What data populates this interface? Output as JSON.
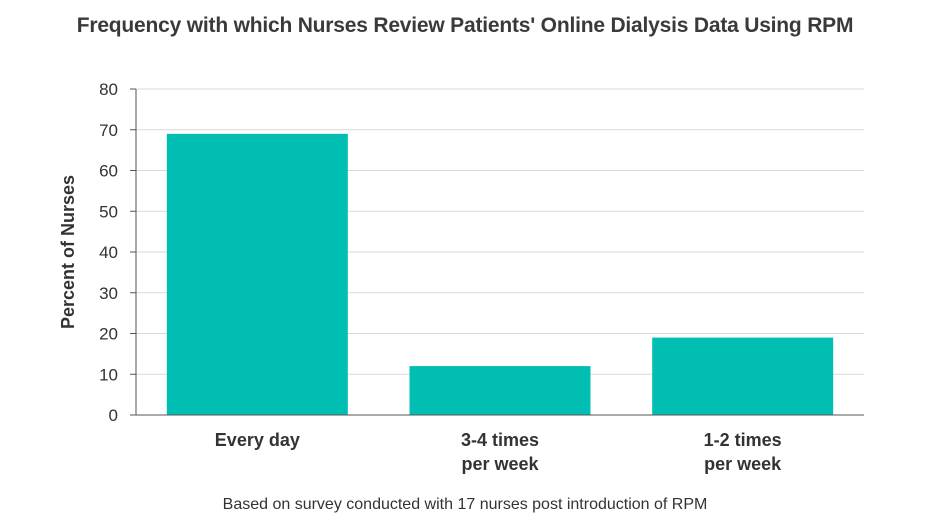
{
  "chart_data": {
    "type": "bar",
    "title": "Frequency with which Nurses Review Patients' Online Dialysis Data Using RPM",
    "xlabel": "",
    "ylabel": "Percent of Nurses",
    "categories": [
      [
        "Every day"
      ],
      [
        "3-4 times",
        "per week"
      ],
      [
        "1-2 times",
        "per week"
      ]
    ],
    "values": [
      69,
      12,
      19
    ],
    "ylim": [
      0,
      80
    ],
    "yticks": [
      0,
      10,
      20,
      30,
      40,
      50,
      60,
      70,
      80
    ],
    "grid": true,
    "bar_color": "#00bfb2",
    "footnote": "Based on survey conducted with 17 nurses post introduction of RPM"
  }
}
